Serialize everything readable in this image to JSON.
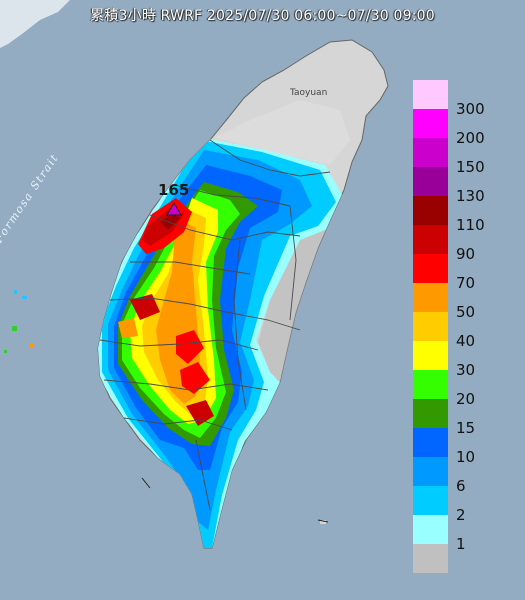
{
  "title": "累積3小時 RWRF 2025/07/30 06:00~07/30 09:00",
  "map": {
    "strait_label": "Formosa Strait",
    "city_label": "Taoyuan",
    "max_value_label": "165",
    "sea_color": "#8fa8be",
    "land_color": "#d6d6d6"
  },
  "legend": {
    "items": [
      {
        "label": "300",
        "color": "#ffc8ff"
      },
      {
        "label": "200",
        "color": "#ff00ff"
      },
      {
        "label": "150",
        "color": "#cc00cc"
      },
      {
        "label": "130",
        "color": "#990099"
      },
      {
        "label": "110",
        "color": "#990000"
      },
      {
        "label": "90",
        "color": "#cc0000"
      },
      {
        "label": "70",
        "color": "#ff0000"
      },
      {
        "label": "50",
        "color": "#ff9900"
      },
      {
        "label": "40",
        "color": "#ffcc00"
      },
      {
        "label": "30",
        "color": "#ffff00"
      },
      {
        "label": "20",
        "color": "#33ff00"
      },
      {
        "label": "15",
        "color": "#339900"
      },
      {
        "label": "10",
        "color": "#0066ff"
      },
      {
        "label": "6",
        "color": "#0099ff"
      },
      {
        "label": "2",
        "color": "#00ccff"
      },
      {
        "label": "1",
        "color": "#99ffff"
      },
      {
        "label": "",
        "color": "#c0c0c0"
      }
    ]
  }
}
